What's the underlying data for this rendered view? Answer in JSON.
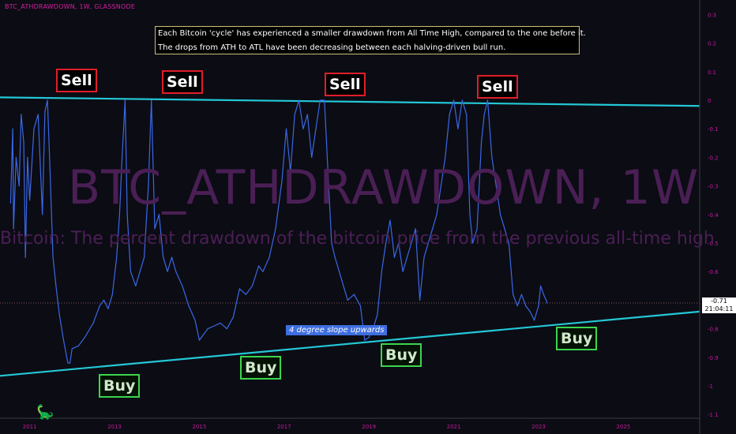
{
  "header": {
    "ticker": "BTC_ATHDRAWDOWN, 1W, GLASSNODE"
  },
  "note": {
    "line1": "Each Bitcoin 'cycle' has experienced a smaller drawdown from All Time High, compared to the one before it.",
    "line2": "The drops from ATH to ATL have been decreasing between each halving-driven bull run."
  },
  "watermark": {
    "title": "BTC_ATHDRAWDOWN, 1W",
    "subtitle": "Bitcoin: The percent drawdown of the bitcoin price from the previous all-time high"
  },
  "annotations": {
    "sell": [
      "Sell",
      "Sell",
      "Sell",
      "Sell"
    ],
    "buy": [
      "Buy",
      "Buy",
      "Buy",
      "Buy"
    ],
    "slope": "4 degree slope upwards"
  },
  "price_tag": {
    "value": "-0.71",
    "time": "21:04:11"
  },
  "colors": {
    "background": "#0c0c14",
    "series": "#3a68e6",
    "trendline": "#23c8d6",
    "axis_text": "#c21a9c",
    "sell": "#e01e2a",
    "buy": "#3bd64d"
  },
  "icons": {
    "logo": "tradingview-dino-icon"
  },
  "chart_data": {
    "type": "line",
    "title": "BTC_ATHDRAWDOWN, 1W",
    "xlabel": "",
    "ylabel": "",
    "xlim": [
      2010.3,
      2026.8
    ],
    "ylim": [
      -1.1,
      0.3
    ],
    "x_ticks": [
      "2011",
      "2013",
      "2015",
      "2017",
      "2019",
      "2021",
      "2023",
      "2025"
    ],
    "y_ticks": [
      "0.3",
      "0.2",
      "0.1",
      "0",
      "-0.1",
      "-0.2",
      "-0.3",
      "-0.4",
      "-0.5",
      "-0.6",
      "-0.7",
      "-0.8",
      "-0.9",
      "-1",
      "-1.1"
    ],
    "series": [
      {
        "values": [
          [
            2010.55,
            -0.36
          ],
          [
            2010.6,
            -0.1
          ],
          [
            2010.62,
            -0.45
          ],
          [
            2010.68,
            -0.2
          ],
          [
            2010.75,
            -0.3
          ],
          [
            2010.8,
            -0.05
          ],
          [
            2010.86,
            -0.15
          ],
          [
            2010.9,
            -0.55
          ],
          [
            2010.95,
            -0.2
          ],
          [
            2011.0,
            -0.35
          ],
          [
            2011.1,
            -0.1
          ],
          [
            2011.2,
            -0.05
          ],
          [
            2011.3,
            -0.4
          ],
          [
            2011.36,
            -0.04
          ],
          [
            2011.42,
            0.0
          ],
          [
            2011.48,
            -0.25
          ],
          [
            2011.55,
            -0.55
          ],
          [
            2011.62,
            -0.65
          ],
          [
            2011.7,
            -0.75
          ],
          [
            2011.8,
            -0.84
          ],
          [
            2011.9,
            -0.92
          ],
          [
            2011.95,
            -0.92
          ],
          [
            2012.0,
            -0.87
          ],
          [
            2012.15,
            -0.86
          ],
          [
            2012.3,
            -0.83
          ],
          [
            2012.5,
            -0.78
          ],
          [
            2012.65,
            -0.72
          ],
          [
            2012.75,
            -0.7
          ],
          [
            2012.85,
            -0.73
          ],
          [
            2012.95,
            -0.68
          ],
          [
            2013.05,
            -0.55
          ],
          [
            2013.12,
            -0.4
          ],
          [
            2013.18,
            -0.2
          ],
          [
            2013.25,
            0.0
          ],
          [
            2013.3,
            -0.4
          ],
          [
            2013.38,
            -0.6
          ],
          [
            2013.5,
            -0.65
          ],
          [
            2013.6,
            -0.6
          ],
          [
            2013.7,
            -0.55
          ],
          [
            2013.8,
            -0.3
          ],
          [
            2013.87,
            0.0
          ],
          [
            2013.95,
            -0.45
          ],
          [
            2014.05,
            -0.4
          ],
          [
            2014.15,
            -0.55
          ],
          [
            2014.25,
            -0.6
          ],
          [
            2014.35,
            -0.55
          ],
          [
            2014.45,
            -0.6
          ],
          [
            2014.6,
            -0.65
          ],
          [
            2014.75,
            -0.72
          ],
          [
            2014.9,
            -0.77
          ],
          [
            2015.0,
            -0.84
          ],
          [
            2015.2,
            -0.8
          ],
          [
            2015.35,
            -0.79
          ],
          [
            2015.5,
            -0.78
          ],
          [
            2015.65,
            -0.8
          ],
          [
            2015.8,
            -0.76
          ],
          [
            2015.95,
            -0.66
          ],
          [
            2016.1,
            -0.68
          ],
          [
            2016.25,
            -0.65
          ],
          [
            2016.4,
            -0.58
          ],
          [
            2016.5,
            -0.6
          ],
          [
            2016.65,
            -0.55
          ],
          [
            2016.8,
            -0.45
          ],
          [
            2016.95,
            -0.28
          ],
          [
            2017.05,
            -0.1
          ],
          [
            2017.15,
            -0.25
          ],
          [
            2017.25,
            -0.05
          ],
          [
            2017.35,
            0.0
          ],
          [
            2017.45,
            -0.1
          ],
          [
            2017.55,
            -0.05
          ],
          [
            2017.65,
            -0.2
          ],
          [
            2017.75,
            -0.1
          ],
          [
            2017.85,
            0.0
          ],
          [
            2017.95,
            0.0
          ],
          [
            2018.05,
            -0.3
          ],
          [
            2018.12,
            -0.5
          ],
          [
            2018.2,
            -0.55
          ],
          [
            2018.3,
            -0.6
          ],
          [
            2018.4,
            -0.65
          ],
          [
            2018.5,
            -0.7
          ],
          [
            2018.65,
            -0.68
          ],
          [
            2018.8,
            -0.72
          ],
          [
            2018.9,
            -0.84
          ],
          [
            2019.0,
            -0.83
          ],
          [
            2019.1,
            -0.8
          ],
          [
            2019.2,
            -0.75
          ],
          [
            2019.3,
            -0.6
          ],
          [
            2019.4,
            -0.5
          ],
          [
            2019.5,
            -0.42
          ],
          [
            2019.6,
            -0.55
          ],
          [
            2019.7,
            -0.5
          ],
          [
            2019.8,
            -0.6
          ],
          [
            2019.9,
            -0.55
          ],
          [
            2020.0,
            -0.5
          ],
          [
            2020.1,
            -0.45
          ],
          [
            2020.2,
            -0.7
          ],
          [
            2020.3,
            -0.55
          ],
          [
            2020.4,
            -0.5
          ],
          [
            2020.5,
            -0.45
          ],
          [
            2020.6,
            -0.4
          ],
          [
            2020.7,
            -0.3
          ],
          [
            2020.8,
            -0.2
          ],
          [
            2020.9,
            -0.05
          ],
          [
            2021.0,
            0.0
          ],
          [
            2021.1,
            -0.1
          ],
          [
            2021.2,
            0.0
          ],
          [
            2021.3,
            -0.05
          ],
          [
            2021.38,
            -0.4
          ],
          [
            2021.45,
            -0.5
          ],
          [
            2021.55,
            -0.45
          ],
          [
            2021.65,
            -0.15
          ],
          [
            2021.72,
            -0.05
          ],
          [
            2021.8,
            0.0
          ],
          [
            2021.9,
            -0.2
          ],
          [
            2022.0,
            -0.3
          ],
          [
            2022.1,
            -0.4
          ],
          [
            2022.2,
            -0.45
          ],
          [
            2022.3,
            -0.5
          ],
          [
            2022.4,
            -0.68
          ],
          [
            2022.5,
            -0.72
          ],
          [
            2022.6,
            -0.68
          ],
          [
            2022.7,
            -0.72
          ],
          [
            2022.8,
            -0.74
          ],
          [
            2022.9,
            -0.77
          ],
          [
            2023.0,
            -0.72
          ],
          [
            2023.05,
            -0.65
          ],
          [
            2023.12,
            -0.68
          ],
          [
            2023.18,
            -0.7
          ],
          [
            2023.2,
            -0.71
          ]
        ]
      }
    ],
    "trendlines": [
      {
        "name": "",
        "points": [
          [
            2010.3,
            0.01
          ],
          [
            2026.8,
            -0.02
          ]
        ]
      },
      {
        "name": "",
        "points": [
          [
            2010.3,
            -0.965
          ],
          [
            2026.8,
            -0.74
          ]
        ]
      }
    ],
    "annotations": [
      {
        "text": "Sell",
        "x": 2010.55,
        "y": 0.07
      },
      {
        "text": "Sell",
        "x": 2013.1,
        "y": 0.06
      },
      {
        "text": "Sell",
        "x": 2016.9,
        "y": 0.05
      },
      {
        "text": "Sell",
        "x": 2020.7,
        "y": 0.04
      },
      {
        "text": "Buy",
        "x": 2011.3,
        "y": -0.99
      },
      {
        "text": "Buy",
        "x": 2014.8,
        "y": -0.93
      },
      {
        "text": "Buy",
        "x": 2018.35,
        "y": -0.88
      },
      {
        "text": "Buy",
        "x": 2022.05,
        "y": -0.84
      }
    ],
    "current_value": -0.71,
    "grid": false,
    "legend": "none"
  }
}
